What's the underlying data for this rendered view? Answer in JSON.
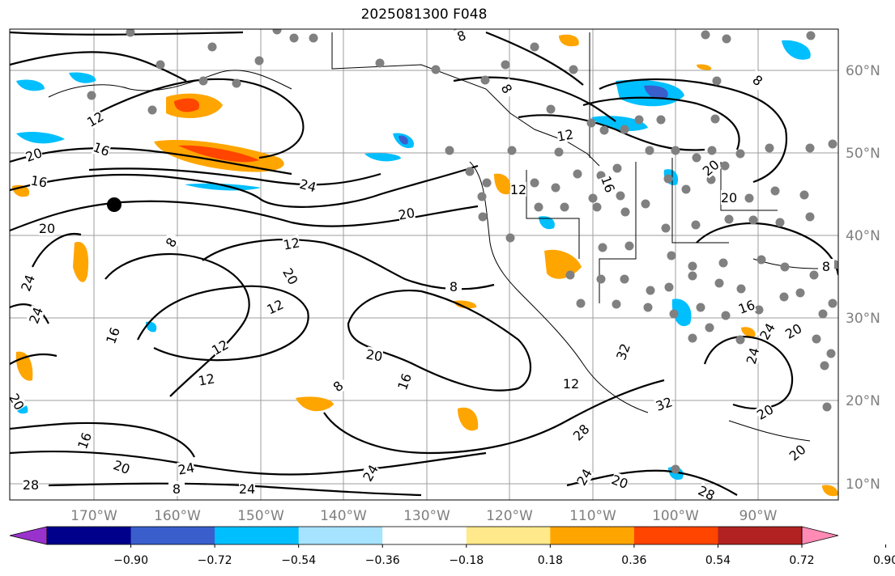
{
  "title": "2025081300 F048",
  "lon_labels": [
    "170°W",
    "160°W",
    "150°W",
    "140°W",
    "130°W",
    "120°W",
    "110°W",
    "100°W",
    "90°W"
  ],
  "lat_labels": [
    "60°N",
    "50°N",
    "40°N",
    "30°N",
    "20°N",
    "10°N"
  ],
  "contour_labels": [
    "8",
    "12",
    "16",
    "20",
    "24",
    "28",
    "32"
  ],
  "contour_label_values": [
    8,
    12,
    16,
    20,
    24,
    28,
    32
  ],
  "colorbar": {
    "tick_labels": [
      "−0.90",
      "−0.72",
      "−0.54",
      "−0.36",
      "−0.18",
      "0.18",
      "0.36",
      "0.54",
      "0.72",
      "0.90"
    ],
    "colors": [
      "#9932cc",
      "#00008b",
      "#3a5fcd",
      "#00bfff",
      "#a6e3ff",
      "#ffffff",
      "#ffe98a",
      "#ffa500",
      "#ff4500",
      "#b22222",
      "#ff8ab4"
    ]
  },
  "colors": {
    "contour": "#000000",
    "grid": "#9e9e9e",
    "station": "#808080",
    "marker": "#000000",
    "axis_label": "#7f7f7f"
  }
}
